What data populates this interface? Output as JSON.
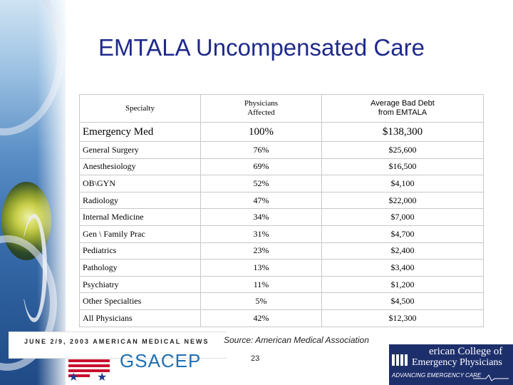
{
  "title": "EMTALA Uncompensated Care",
  "table": {
    "headers": {
      "specialty": "Specialty",
      "physicians_line1": "Physicians",
      "physicians_line2": "Affected",
      "debt_line1": "Average Bad Debt",
      "debt_line2": "from EMTALA"
    },
    "rows": [
      {
        "specialty": "Emergency Med",
        "physicians": "100%",
        "debt": "$138,300"
      },
      {
        "specialty": "General Surgery",
        "physicians": "76%",
        "debt": "$25,600"
      },
      {
        "specialty": "Anesthesiology",
        "physicians": "69%",
        "debt": "$16,500"
      },
      {
        "specialty": "OB\\GYN",
        "physicians": "52%",
        "debt": "$4,100"
      },
      {
        "specialty": "Radiology",
        "physicians": "47%",
        "debt": "$22,000"
      },
      {
        "specialty": "Internal Medicine",
        "physicians": "34%",
        "debt": "$7,000"
      },
      {
        "specialty": "Gen \\ Family Prac",
        "physicians": "31%",
        "debt": "$4,700"
      },
      {
        "specialty": "Pediatrics",
        "physicians": "23%",
        "debt": "$2,400"
      },
      {
        "specialty": "Pathology",
        "physicians": "13%",
        "debt": "$3,400"
      },
      {
        "specialty": "Psychiatry",
        "physicians": "11%",
        "debt": "$1,200"
      },
      {
        "specialty": "Other Specialties",
        "physicians": "5%",
        "debt": "$4,500"
      },
      {
        "specialty": "All Physicians",
        "physicians": "42%",
        "debt": "$12,300"
      }
    ]
  },
  "clipping": "JUNE 2/9, 2003  AMERICAN MEDICAL NEWS",
  "source": "Source: American Medical Association",
  "page_number": "23",
  "logos": {
    "gsacep": "GSACEP",
    "acep_line1": "erican College of",
    "acep_line2": "Emergency Physicians",
    "acep_tagline": "ADVANCING EMERGENCY CARE"
  },
  "colors": {
    "title": "#1f2a8a",
    "acep_navy": "#1d2f6b",
    "gsacep_blue": "#1f6fb0",
    "flag_red": "#c8102e"
  }
}
